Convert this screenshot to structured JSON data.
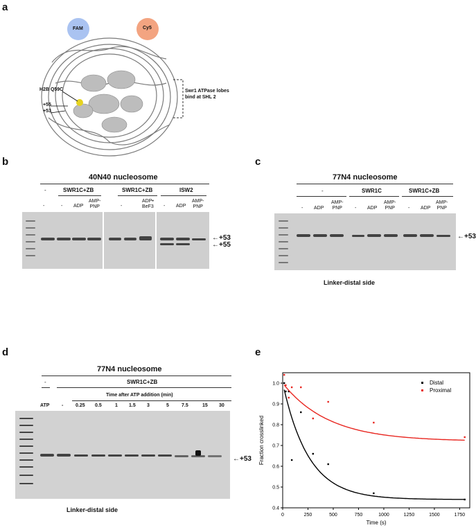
{
  "panels": {
    "a": "a",
    "b": "b",
    "c": "c",
    "d": "d",
    "e": "e"
  },
  "panel_a": {
    "fam_label": "FAM",
    "cy5_label": "Cy5",
    "site_label": "H2B Q59C",
    "p55": "+55",
    "p53": "+53",
    "swr1_label_1": "Swr1 ATPase lobes",
    "swr1_label_2": "bind at SHL 2",
    "fam_color": "#9bb8ef",
    "cy5_color": "#f29a73",
    "site_color": "#e6d320"
  },
  "panel_b": {
    "title": "40N40 nucleosome",
    "groups": [
      {
        "label": "-"
      },
      {
        "label": "SWR1C+ZB"
      },
      {
        "label": "SWR1C+ZB"
      },
      {
        "label": "ISW2"
      }
    ],
    "lanes": [
      "-",
      "-",
      "ADP",
      "AMP-\nPNP",
      "-",
      "ADP•\nBeF3",
      "-",
      "ADP",
      "AMP-\nPNP"
    ],
    "arrow1": "+53",
    "arrow2": "+55"
  },
  "panel_c": {
    "title": "77N4 nucleosome",
    "groups": [
      {
        "label": "-"
      },
      {
        "label": "SWR1C"
      },
      {
        "label": "SWR1C+ZB"
      }
    ],
    "lanes": [
      "-",
      "ADP",
      "AMP-\nPNP",
      "-",
      "ADP",
      "AMP-\nPNP",
      "-",
      "ADP",
      "AMP-\nPNP"
    ],
    "arrow": "+53",
    "footer": "Linker-distal side"
  },
  "panel_d": {
    "title": "77N4 nucleosome",
    "minus": "-",
    "group": "SWR1C+ZB",
    "time_header": "Time after ATP addition (min)",
    "lanes": [
      "ATP",
      "-",
      "0.25",
      "0.5",
      "1",
      "1.5",
      "3",
      "5",
      "7.5",
      "15",
      "30"
    ],
    "arrow": "+53",
    "footer": "Linker-distal side"
  },
  "chart_data": {
    "type": "scatter",
    "xlabel": "Time (s)",
    "ylabel": "Fraction crosslinked",
    "xlim": [
      0,
      1850
    ],
    "ylim": [
      0.4,
      1.05
    ],
    "xticks": [
      0,
      250,
      500,
      750,
      1000,
      1250,
      1500,
      1750
    ],
    "yticks": [
      0.4,
      0.5,
      0.6,
      0.7,
      0.8,
      0.9,
      1.0
    ],
    "legend_position": "top-right",
    "series": [
      {
        "name": "Distal",
        "color": "#000000",
        "points": [
          [
            15,
            1.0
          ],
          [
            30,
            0.96
          ],
          [
            60,
            0.96
          ],
          [
            90,
            0.63
          ],
          [
            180,
            0.86
          ],
          [
            300,
            0.66
          ],
          [
            450,
            0.61
          ],
          [
            900,
            0.47
          ],
          [
            1800,
            0.44
          ]
        ],
        "fit": {
          "plateau": 0.44,
          "amplitude": 0.56,
          "k": 0.0039
        }
      },
      {
        "name": "Proximal",
        "color": "#e8251f",
        "points": [
          [
            15,
            1.04
          ],
          [
            30,
            0.99
          ],
          [
            60,
            0.93
          ],
          [
            90,
            0.98
          ],
          [
            180,
            0.98
          ],
          [
            300,
            0.83
          ],
          [
            450,
            0.91
          ],
          [
            900,
            0.81
          ],
          [
            1800,
            0.74
          ]
        ],
        "fit": {
          "plateau": 0.72,
          "amplitude": 0.28,
          "k": 0.0022
        }
      }
    ]
  }
}
